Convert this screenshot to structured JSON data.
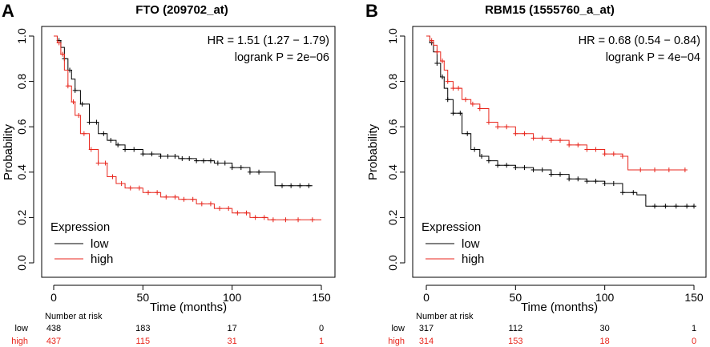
{
  "colors": {
    "low": "#000000",
    "high": "#e8261c",
    "axis": "#000000"
  },
  "number_at_risk_label": "Number at risk",
  "chart_data": [
    {
      "type": "line",
      "panel": "A",
      "title": "FTO (209702_at)",
      "xlabel": "Time (months)",
      "ylabel": "Probability",
      "xlim": [
        0,
        150
      ],
      "ylim": [
        0,
        1
      ],
      "xticks": [
        "0",
        "50",
        "100",
        "150"
      ],
      "yticks": [
        "0.0",
        "0.2",
        "0.4",
        "0.6",
        "0.8",
        "1.0"
      ],
      "hr_text": "HR = 1.51 (1.27 − 1.79)",
      "p_text": "logrank P = 2e−06",
      "legend_title": "Expression",
      "series": [
        {
          "name": "low",
          "x": [
            0,
            2,
            4,
            6,
            8,
            10,
            12,
            15,
            20,
            25,
            30,
            35,
            40,
            50,
            60,
            70,
            80,
            90,
            100,
            110,
            123,
            124,
            145
          ],
          "y": [
            1.0,
            0.98,
            0.95,
            0.9,
            0.85,
            0.81,
            0.76,
            0.7,
            0.62,
            0.57,
            0.54,
            0.52,
            0.5,
            0.48,
            0.47,
            0.46,
            0.45,
            0.44,
            0.42,
            0.4,
            0.4,
            0.34,
            0.34
          ],
          "censor_x": [
            3,
            6,
            9,
            12,
            16,
            20,
            24,
            28,
            32,
            36,
            40,
            45,
            50,
            55,
            60,
            64,
            68,
            72,
            76,
            80,
            84,
            88,
            92,
            96,
            100,
            105,
            110,
            115,
            128,
            133,
            138,
            143
          ]
        },
        {
          "name": "high",
          "x": [
            0,
            2,
            4,
            6,
            8,
            10,
            12,
            15,
            20,
            25,
            30,
            35,
            40,
            50,
            60,
            70,
            80,
            90,
            100,
            110,
            120,
            125,
            150
          ],
          "y": [
            1.0,
            0.97,
            0.92,
            0.85,
            0.78,
            0.71,
            0.65,
            0.57,
            0.5,
            0.44,
            0.38,
            0.35,
            0.33,
            0.31,
            0.29,
            0.28,
            0.26,
            0.24,
            0.22,
            0.2,
            0.19,
            0.19,
            0.19
          ],
          "censor_x": [
            3,
            5,
            8,
            11,
            14,
            17,
            21,
            25,
            29,
            33,
            38,
            43,
            48,
            53,
            58,
            63,
            68,
            73,
            78,
            83,
            88,
            93,
            98,
            103,
            108,
            113,
            118,
            123,
            130,
            137,
            145
          ]
        }
      ],
      "risk_table": {
        "times": [
          0,
          50,
          100,
          150
        ],
        "rows": [
          {
            "name": "low",
            "counts": [
              "438",
              "183",
              "17",
              "0"
            ]
          },
          {
            "name": "high",
            "counts": [
              "437",
              "115",
              "31",
              "1"
            ]
          }
        ]
      }
    },
    {
      "type": "line",
      "panel": "B",
      "title": "RBM15 (1555760_a_at)",
      "xlabel": "Time (months)",
      "ylabel": "Probability",
      "xlim": [
        0,
        150
      ],
      "ylim": [
        0,
        1
      ],
      "xticks": [
        "0",
        "50",
        "100",
        "150"
      ],
      "yticks": [
        "0.0",
        "0.2",
        "0.4",
        "0.6",
        "0.8",
        "1.0"
      ],
      "hr_text": "HR = 0.68 (0.54 − 0.84)",
      "p_text": "logrank P = 4e−04",
      "legend_title": "Expression",
      "series": [
        {
          "name": "low",
          "x": [
            0,
            2,
            4,
            6,
            8,
            10,
            12,
            15,
            20,
            25,
            30,
            35,
            40,
            50,
            60,
            70,
            80,
            90,
            100,
            110,
            118,
            122,
            123,
            150
          ],
          "y": [
            1.0,
            0.97,
            0.93,
            0.88,
            0.82,
            0.77,
            0.72,
            0.66,
            0.57,
            0.5,
            0.47,
            0.45,
            0.43,
            0.42,
            0.41,
            0.39,
            0.37,
            0.36,
            0.35,
            0.31,
            0.3,
            0.3,
            0.25,
            0.25
          ],
          "censor_x": [
            3,
            6,
            9,
            12,
            15,
            19,
            23,
            27,
            31,
            35,
            40,
            45,
            50,
            55,
            60,
            65,
            70,
            75,
            80,
            85,
            90,
            95,
            100,
            105,
            110,
            116,
            128,
            134,
            140,
            146,
            150
          ]
        },
        {
          "name": "high",
          "x": [
            0,
            2,
            4,
            6,
            8,
            10,
            12,
            15,
            20,
            25,
            30,
            35,
            40,
            50,
            60,
            70,
            80,
            90,
            100,
            110,
            112,
            113,
            145
          ],
          "y": [
            1.0,
            0.98,
            0.96,
            0.93,
            0.89,
            0.85,
            0.8,
            0.77,
            0.72,
            0.7,
            0.68,
            0.62,
            0.6,
            0.57,
            0.55,
            0.54,
            0.52,
            0.5,
            0.48,
            0.47,
            0.47,
            0.41,
            0.41
          ],
          "censor_x": [
            3,
            6,
            9,
            12,
            15,
            18,
            22,
            26,
            30,
            35,
            40,
            45,
            50,
            55,
            60,
            65,
            70,
            75,
            80,
            85,
            90,
            95,
            100,
            105,
            110,
            120,
            128,
            136,
            145
          ]
        }
      ],
      "risk_table": {
        "times": [
          0,
          50,
          100,
          150
        ],
        "rows": [
          {
            "name": "low",
            "counts": [
              "317",
              "112",
              "30",
              "1"
            ]
          },
          {
            "name": "high",
            "counts": [
              "314",
              "153",
              "18",
              "0"
            ]
          }
        ]
      }
    }
  ]
}
